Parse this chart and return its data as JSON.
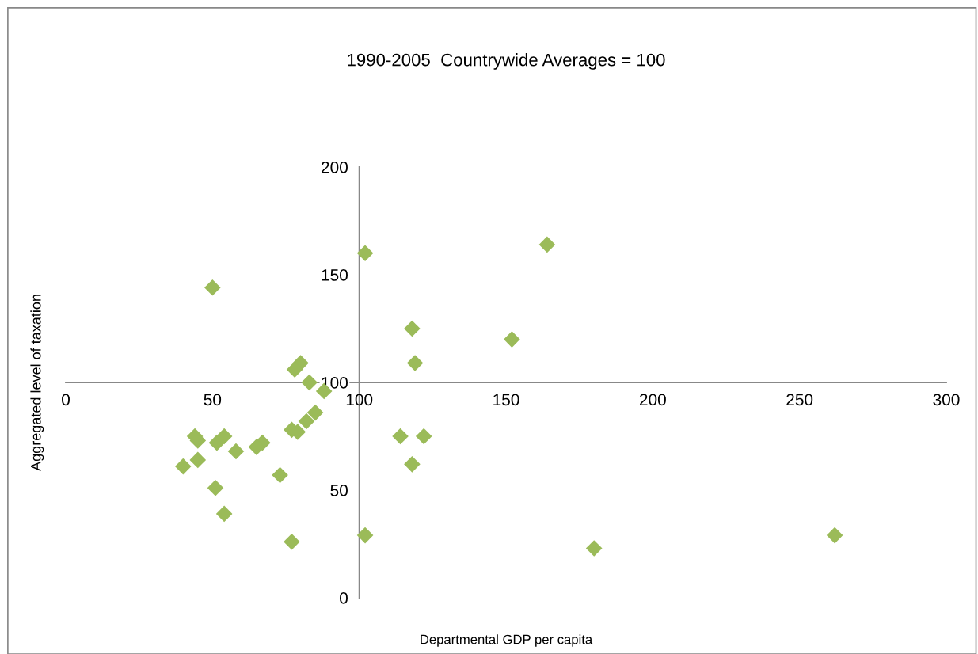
{
  "chart_data": {
    "type": "scatter",
    "title": "1990-2005  Countrywide Averages = 100",
    "xlabel": "Departmental GDP per capita",
    "ylabel": "Aggregated level of taxation",
    "x": [
      102,
      164,
      50,
      118,
      152,
      119,
      80,
      78,
      83,
      88,
      85,
      82,
      77,
      79,
      44,
      45,
      54,
      51.5,
      114,
      122,
      67,
      65,
      58,
      45,
      40,
      118,
      73,
      51,
      54,
      77,
      102,
      180,
      262
    ],
    "series": [
      {
        "color": "#9bbb59",
        "values": [
          160,
          164,
          144,
          125,
          120,
          109,
          109,
          106,
          100,
          96,
          86,
          82,
          78,
          77,
          75,
          73,
          75,
          72,
          75,
          75,
          72,
          70,
          68,
          64,
          61,
          62,
          57,
          51,
          39,
          26,
          29,
          23,
          29
        ]
      }
    ],
    "xlim": [
      0,
      300
    ],
    "ylim": [
      0,
      200
    ],
    "xticks": [
      0,
      50,
      100,
      150,
      200,
      250,
      300
    ],
    "yticks": [
      0,
      50,
      100,
      150,
      200
    ],
    "marker": "diamond",
    "grid": false
  }
}
